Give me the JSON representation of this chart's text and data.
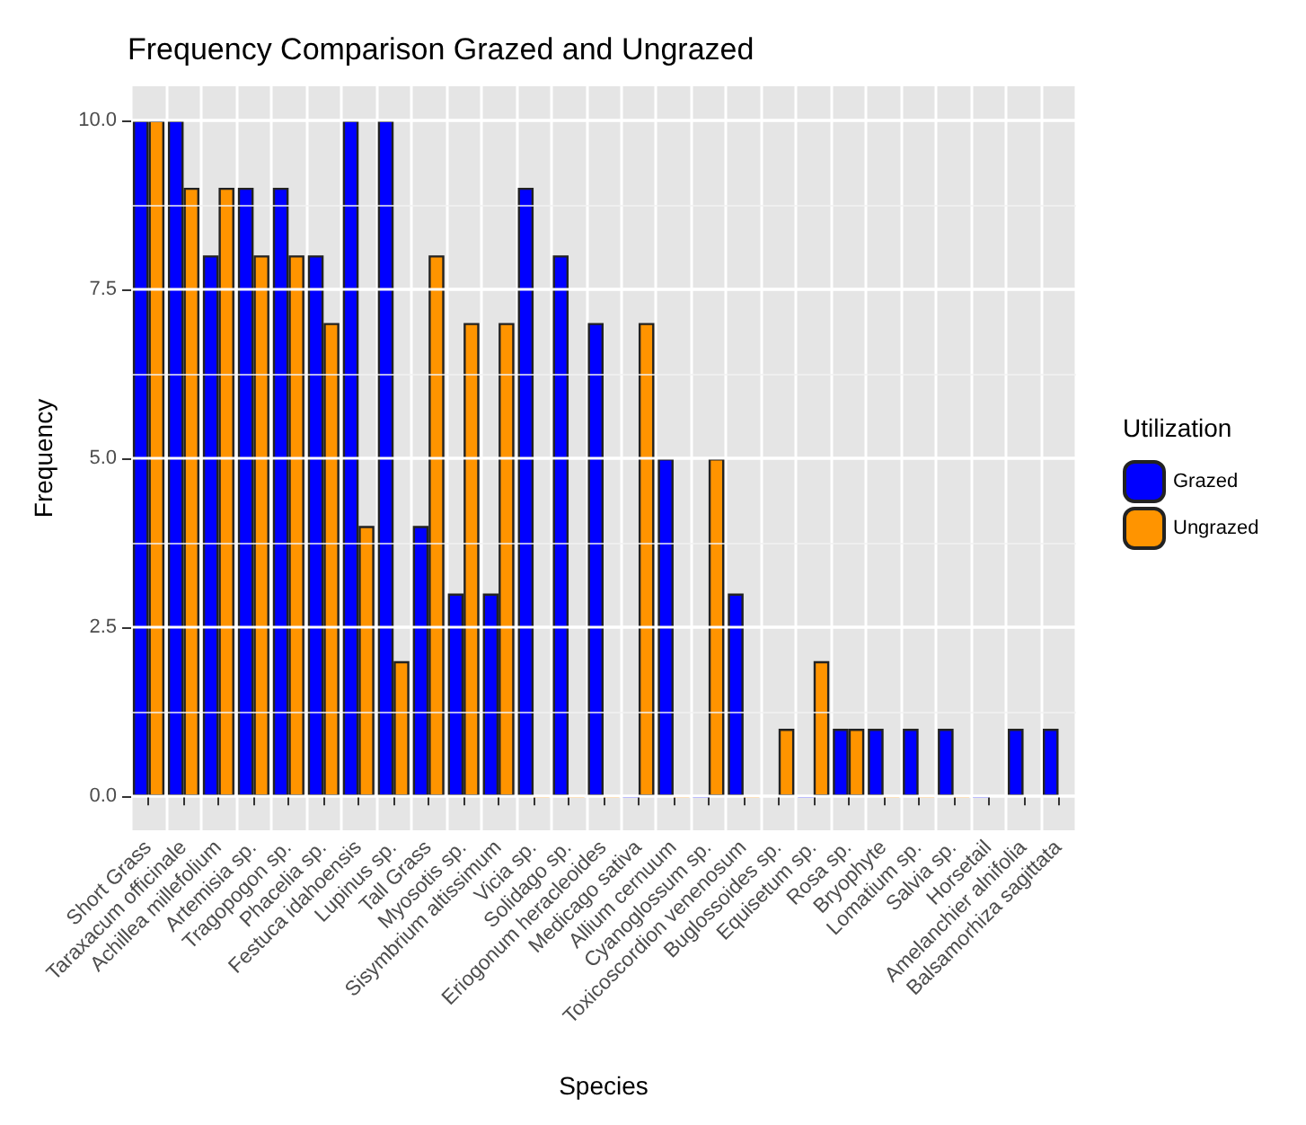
{
  "chart_data": {
    "type": "bar",
    "title": "Frequency Comparison Grazed and Ungrazed",
    "xlabel": "Species",
    "ylabel": "Frequency",
    "legend_title": "Utilization",
    "legend": "right",
    "grid": true,
    "categories": [
      "Short Grass",
      "Taraxacum officinale",
      "Achillea millefolium",
      "Artemisia sp.",
      "Tragopogon sp.",
      "Phacelia sp.",
      "Festuca idahoensis",
      "Lupinus sp.",
      "Tall Grass",
      "Myosotis sp.",
      "Sisymbrium altissimum",
      "Vicia sp.",
      "Solidago sp.",
      "Eriogonum heracleoides",
      "Medicago sativa",
      "Allium cernuum",
      "Cyanoglossum sp.",
      "Toxicoscordion venenosum",
      "Buglossoides sp.",
      "Equisetum sp.",
      "Rosa sp.",
      "Bryophyte",
      "Lomatium sp.",
      "Salvia sp.",
      "Horsetail",
      "Amelanchier alnifolia",
      "Balsamorhiza sagittata"
    ],
    "series": [
      {
        "name": "Grazed",
        "color": "#0000ff",
        "values": [
          10,
          10,
          8,
          9,
          9,
          8,
          10,
          10,
          4,
          3,
          3,
          9,
          8,
          7,
          0,
          5,
          0,
          3,
          null,
          0,
          1,
          1,
          1,
          1,
          0,
          1,
          1
        ]
      },
      {
        "name": "Ungrazed",
        "color": "#ff9400",
        "values": [
          10,
          9,
          9,
          8,
          8,
          7,
          4,
          2,
          8,
          7,
          7,
          0,
          0,
          0,
          7,
          0,
          5,
          0,
          1,
          2,
          1,
          0,
          0,
          0,
          null,
          null,
          null
        ]
      }
    ],
    "ylim": [
      -0.5,
      10.5
    ],
    "yticks": [
      {
        "value": 0,
        "label": "0.0"
      },
      {
        "value": 2.5,
        "label": "2.5"
      },
      {
        "value": 5,
        "label": "5.0"
      },
      {
        "value": 7.5,
        "label": "7.5"
      },
      {
        "value": 10,
        "label": "10.0"
      }
    ]
  }
}
